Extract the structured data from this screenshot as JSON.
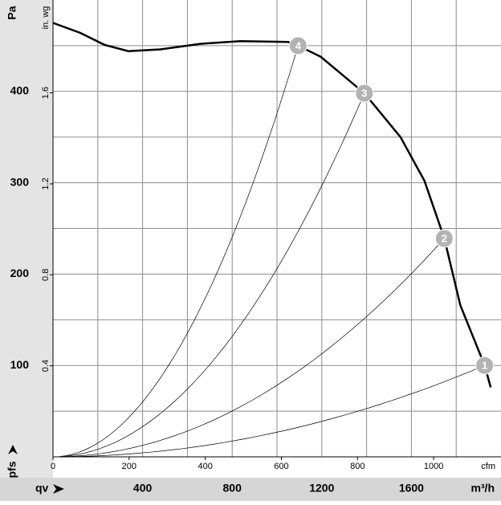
{
  "chart_data": {
    "type": "line",
    "y_label": "Pa",
    "y2_label": "in. wg",
    "y_symbol": "pfs",
    "x_symbol": "qv",
    "x_label": "cfm",
    "x2_label": "m³/h",
    "xlim": [
      0,
      1177
    ],
    "xticks": [
      0,
      200,
      400,
      600,
      800,
      1000
    ],
    "x2lim": [
      0,
      2000
    ],
    "x2ticks": [
      400,
      800,
      1200,
      1600
    ],
    "x2grid_minor": [
      200,
      600,
      1000,
      1400,
      1800
    ],
    "ylim": [
      0,
      500
    ],
    "yticks": [
      100,
      200,
      300,
      400
    ],
    "ygrid_minor": [
      50,
      150,
      250,
      350,
      450
    ],
    "y2lim": [
      0,
      2.008
    ],
    "y2ticks": [
      0.4,
      0.8,
      1.2,
      1.6
    ],
    "grid": true,
    "series": [
      {
        "color": "#000000",
        "x": [
          0,
          72,
          135,
          198,
          282,
          387,
          492,
          618,
          644,
          703,
          818,
          913,
          976,
          1028,
          1070,
          1134,
          1150
        ],
        "values": [
          475,
          464,
          451,
          444,
          446,
          452,
          455,
          454,
          450,
          438,
          398,
          350,
          302,
          239,
          166,
          100,
          76
        ]
      }
    ],
    "points": [
      {
        "label": "1",
        "x": 1134,
        "y": 100
      },
      {
        "label": "2",
        "x": 1028,
        "y": 239
      },
      {
        "label": "3",
        "x": 818,
        "y": 398
      },
      {
        "label": "4",
        "x": 644,
        "y": 450
      }
    ]
  }
}
